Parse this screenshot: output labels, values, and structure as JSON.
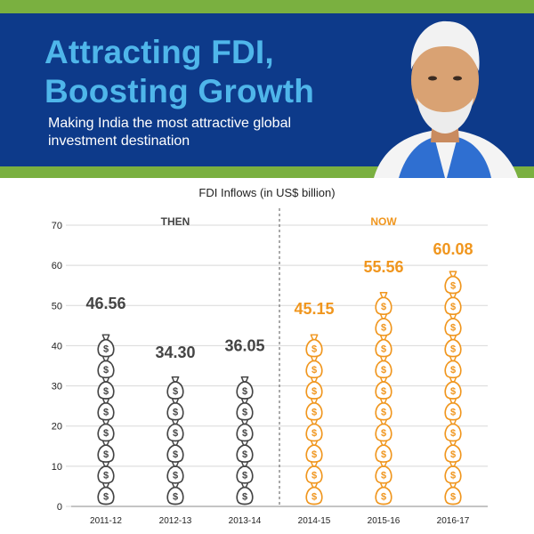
{
  "header": {
    "title_line1": "Attracting FDI,",
    "title_line2": "Boosting Growth",
    "subtitle": "Making India the most attractive global investment destination",
    "colors": {
      "band": "#0d3a8a",
      "accent": "#7ab040",
      "title": "#4fb6ea"
    }
  },
  "chart_data": {
    "type": "bar",
    "title": "FDI Inflows (in US$ billion)",
    "xlabel": "",
    "ylabel": "",
    "ylim": [
      0,
      70
    ],
    "yticks": [
      0,
      10,
      20,
      30,
      40,
      50,
      60,
      70
    ],
    "grid": true,
    "categories": [
      "2011-12",
      "2012-13",
      "2013-14",
      "2014-15",
      "2015-16",
      "2016-17"
    ],
    "values": [
      46.56,
      34.3,
      36.05,
      45.15,
      55.56,
      60.08
    ],
    "value_labels": [
      "46.56",
      "34.30",
      "36.05",
      "45.15",
      "55.56",
      "60.08"
    ],
    "groups": [
      {
        "label": "THEN",
        "categories": [
          "2011-12",
          "2012-13",
          "2013-14"
        ],
        "color": "#444444"
      },
      {
        "label": "NOW",
        "categories": [
          "2014-15",
          "2015-16",
          "2016-17"
        ],
        "color": "#f0961e"
      }
    ],
    "mark": "money-bag-icon"
  }
}
